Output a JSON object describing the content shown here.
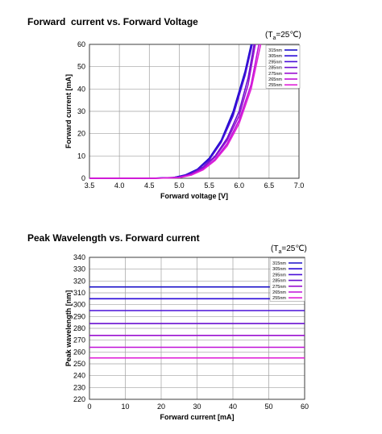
{
  "chart_data": [
    {
      "type": "line",
      "title": "Forward  current vs. Forward Voltage",
      "condition": {
        "main": "(T",
        "sub": "a",
        "rest": "=25℃)"
      },
      "xlabel": "Forward voltage [V]",
      "ylabel": "Forward current [mA]",
      "xlim": [
        3.5,
        7.0
      ],
      "ylim": [
        0,
        60
      ],
      "xticks": [
        "3.5",
        "4.0",
        "4.5",
        "5.0",
        "5.5",
        "6.0",
        "6.5",
        "7.0"
      ],
      "yticks": [
        "0",
        "10",
        "20",
        "30",
        "40",
        "50",
        "60"
      ],
      "grid": true,
      "legend_position": "top-right",
      "series": [
        {
          "name": "315nm",
          "color": "#1a10c8",
          "x": [
            3.5,
            4.5,
            4.9,
            5.1,
            5.3,
            5.5,
            5.7,
            5.9,
            6.1,
            6.2
          ],
          "y": [
            0,
            0,
            0.3,
            1.5,
            4,
            9,
            17,
            30,
            48,
            60
          ]
        },
        {
          "name": "305nm",
          "color": "#2a0ad8",
          "x": [
            3.5,
            4.5,
            4.9,
            5.1,
            5.3,
            5.5,
            5.7,
            5.9,
            6.1,
            6.21
          ],
          "y": [
            0,
            0,
            0.3,
            1.4,
            3.8,
            8.6,
            16.5,
            29,
            47,
            60
          ]
        },
        {
          "name": "295nm",
          "color": "#4a10d8",
          "x": [
            3.5,
            4.5,
            4.9,
            5.1,
            5.3,
            5.5,
            5.7,
            5.9,
            6.1,
            6.22
          ],
          "y": [
            0,
            0,
            0.3,
            1.3,
            3.6,
            8.2,
            16,
            28,
            46,
            60
          ]
        },
        {
          "name": "285nm",
          "color": "#6a10d0",
          "x": [
            3.5,
            4.6,
            5.0,
            5.2,
            5.4,
            5.6,
            5.8,
            6.0,
            6.15,
            6.25
          ],
          "y": [
            0,
            0,
            0.5,
            2,
            5,
            10,
            18,
            30,
            45,
            60
          ]
        },
        {
          "name": "275nm",
          "color": "#9a10d0",
          "x": [
            3.5,
            4.6,
            5.0,
            5.2,
            5.4,
            5.6,
            5.8,
            6.0,
            6.15,
            6.27
          ],
          "y": [
            0,
            0,
            0.4,
            1.8,
            4.6,
            9.5,
            17,
            28,
            42,
            60
          ]
        },
        {
          "name": "265nm",
          "color": "#c010d8",
          "x": [
            3.5,
            4.6,
            5.0,
            5.2,
            5.4,
            5.6,
            5.8,
            6.0,
            6.2,
            6.33
          ],
          "y": [
            0,
            0,
            0.3,
            1.5,
            4,
            8.5,
            15.5,
            26,
            42,
            60
          ]
        },
        {
          "name": "255nm",
          "color": "#e020d8",
          "x": [
            3.5,
            4.6,
            5.0,
            5.2,
            5.4,
            5.6,
            5.8,
            6.0,
            6.2,
            6.36
          ],
          "y": [
            0,
            0,
            0.3,
            1.4,
            3.8,
            8,
            14.5,
            24.5,
            40,
            60
          ]
        }
      ]
    },
    {
      "type": "line",
      "title": "Peak Wavelength vs. Forward current",
      "condition": {
        "main": "(T",
        "sub": "a",
        "rest": "=25℃)"
      },
      "xlabel": "Forward current [mA]",
      "ylabel": "Peak wavelength [nm]",
      "xlim": [
        0,
        60
      ],
      "ylim": [
        220,
        340
      ],
      "xticks": [
        "0",
        "10",
        "20",
        "30",
        "40",
        "50",
        "60"
      ],
      "yticks": [
        "220",
        "230",
        "240",
        "250",
        "260",
        "270",
        "280",
        "290",
        "300",
        "310",
        "320",
        "330",
        "340"
      ],
      "grid": true,
      "legend_position": "top-right",
      "series": [
        {
          "name": "315nm",
          "color": "#1a10c8",
          "x": [
            0,
            60
          ],
          "y": [
            315,
            315
          ]
        },
        {
          "name": "305nm",
          "color": "#2a0ad8",
          "x": [
            0,
            60
          ],
          "y": [
            305,
            305
          ]
        },
        {
          "name": "295nm",
          "color": "#4a10d8",
          "x": [
            0,
            60
          ],
          "y": [
            295,
            295
          ]
        },
        {
          "name": "285nm",
          "color": "#6a10d0",
          "x": [
            0,
            60
          ],
          "y": [
            284,
            284
          ]
        },
        {
          "name": "275nm",
          "color": "#9a10d0",
          "x": [
            0,
            60
          ],
          "y": [
            274,
            274
          ]
        },
        {
          "name": "265nm",
          "color": "#c010d8",
          "x": [
            0,
            60
          ],
          "y": [
            264,
            264
          ]
        },
        {
          "name": "255nm",
          "color": "#e020d8",
          "x": [
            0,
            60
          ],
          "y": [
            255,
            255
          ]
        }
      ]
    }
  ]
}
